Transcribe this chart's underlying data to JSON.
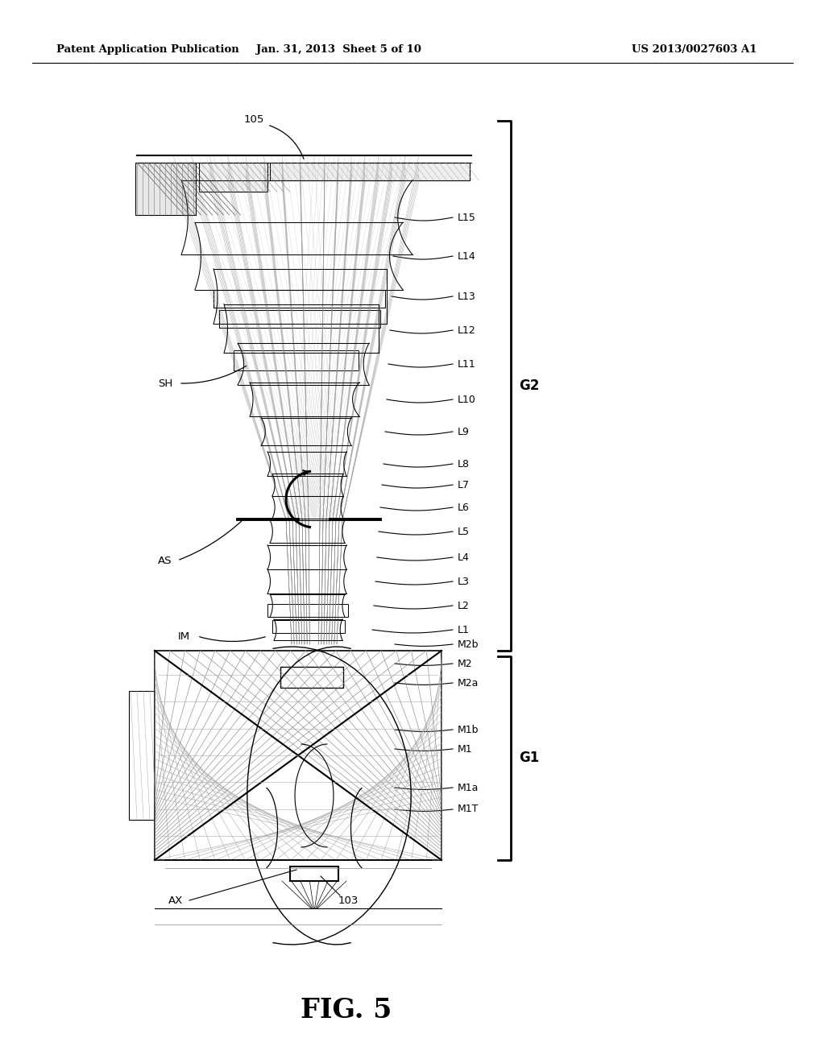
{
  "header_left": "Patent Application Publication",
  "header_center": "Jan. 31, 2013  Sheet 5 of 10",
  "header_right": "US 2013/0027603 A1",
  "fig_label": "FIG. 5",
  "background": "#ffffff",
  "lens_labels": [
    "L15",
    "L14",
    "L13",
    "L12",
    "L11",
    "L10",
    "L9",
    "L8",
    "L7",
    "L6",
    "L5",
    "L4",
    "L3",
    "L2",
    "L1"
  ],
  "mirror_labels": [
    "M2b",
    "M2",
    "M2a",
    "M1b",
    "M1",
    "M1a",
    "M1T"
  ]
}
